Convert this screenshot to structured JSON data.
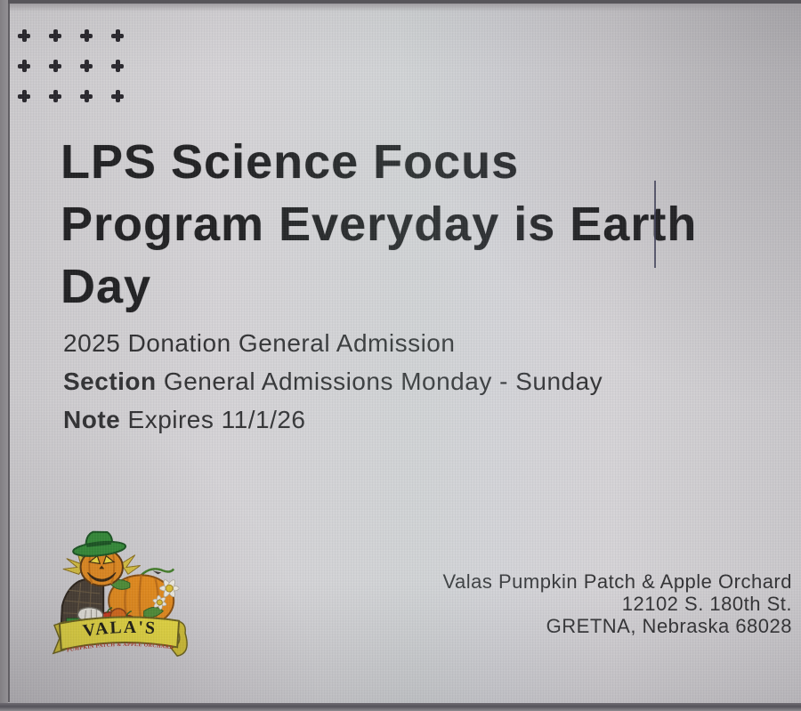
{
  "ticket": {
    "title_lines": [
      "LPS Science Focus",
      "Program Everyday is Earth",
      "Day"
    ],
    "subtitle": "2025 Donation General Admission",
    "section_label": "Section",
    "section_value": "General Admissions Monday - Sunday",
    "note_label": "Note",
    "note_value": "Expires 11/1/26"
  },
  "venue": {
    "name": "Valas Pumpkin Patch & Apple Orchard",
    "address_line1": "12102 S. 180th St.",
    "address_line2": "GRETNA, Nebraska 68028"
  },
  "logo": {
    "brand": "VALA'S",
    "tagline": "PUMPKIN PATCH & APPLE ORCHARD"
  },
  "decor": {
    "plus_rows": 3,
    "plus_cols": 4
  },
  "colors": {
    "title_text": "#1b1b1d",
    "body_text": "#2c2c2e",
    "accent_plus": "#232127",
    "banner_yellow": "#f0e13c",
    "banner_outline": "#6b6114",
    "pumpkin_orange": "#ee8d15",
    "leaf_green": "#4c9032",
    "hat_green": "#2f8c33",
    "apple_red": "#d23517",
    "brand_text": "#15150a",
    "tagline_red": "#b5321e"
  }
}
